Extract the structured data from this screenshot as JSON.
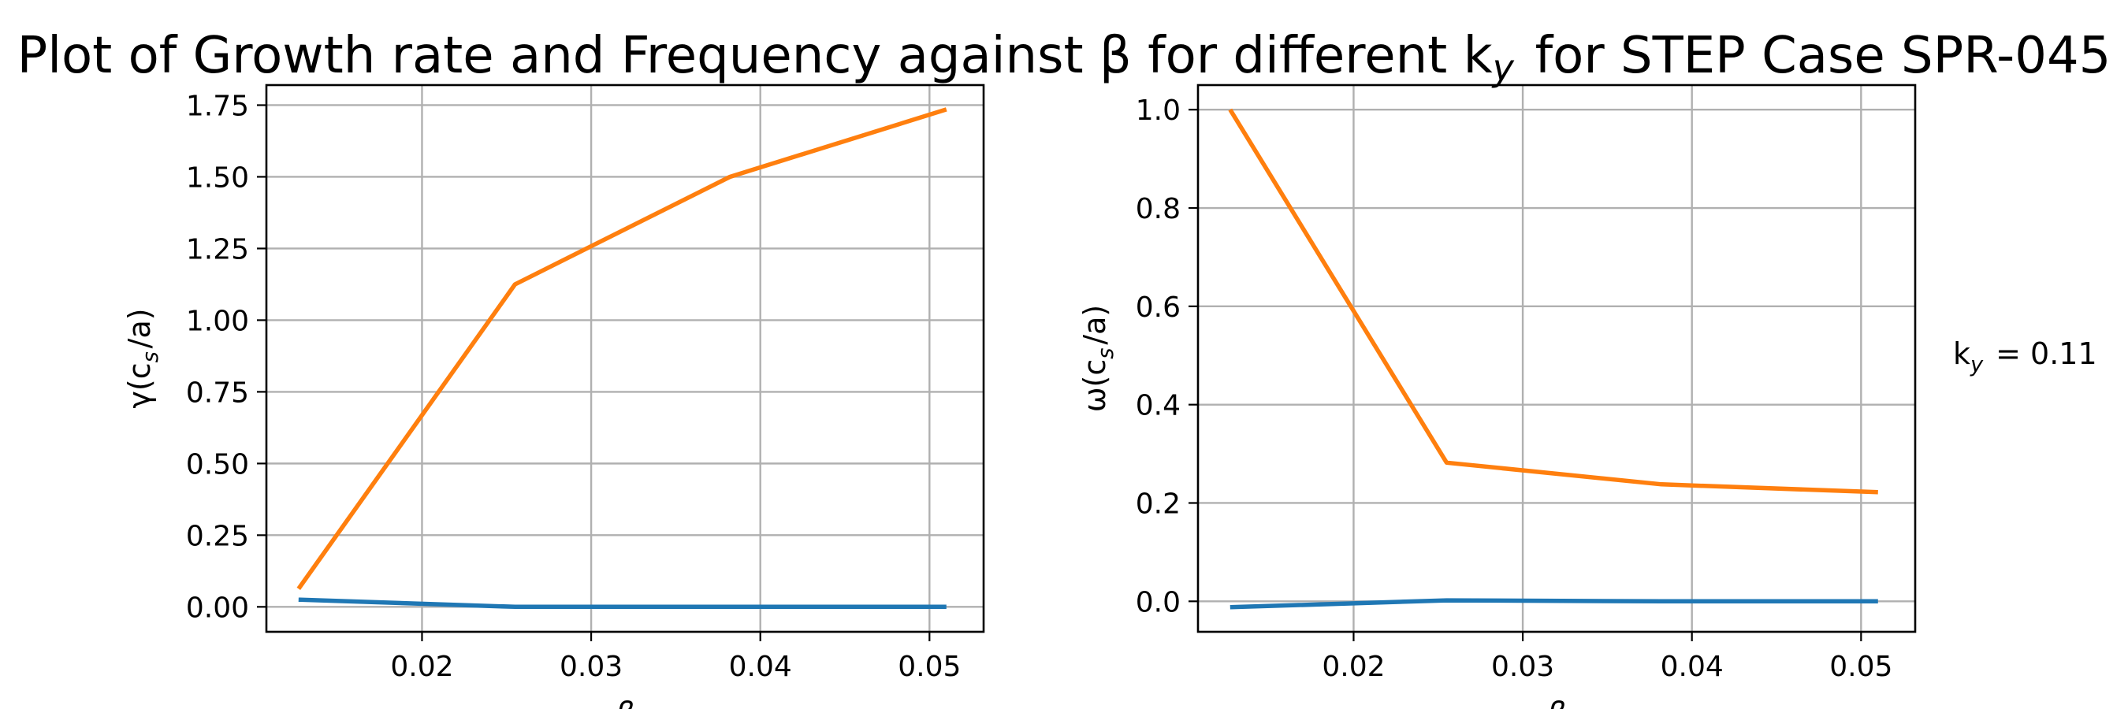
{
  "title": "Plot of Growth rate and Frequency against β for different k_y for STEP Case SPR-045",
  "annotation": "k_y = 0.11",
  "chart_data": [
    {
      "type": "line",
      "ylabel": "γ(c_s/a)",
      "xlabel": "β",
      "xticks": [
        0.02,
        0.03,
        0.04,
        0.05
      ],
      "xtick_labels": [
        "0.02",
        "0.03",
        "0.04",
        "0.05"
      ],
      "yticks": [
        0.0,
        0.25,
        0.5,
        0.75,
        1.0,
        1.25,
        1.5,
        1.75
      ],
      "ytick_labels": [
        "0.00",
        "0.25",
        "0.50",
        "0.75",
        "1.00",
        "1.25",
        "1.50",
        "1.75"
      ],
      "xlim": [
        0.0108,
        0.0532
      ],
      "ylim": [
        -0.087,
        1.82
      ],
      "grid": true,
      "x": [
        0.0127,
        0.0255,
        0.0382,
        0.051
      ],
      "series": [
        {
          "color": "#1f77b4",
          "values": [
            0.025,
            0.0,
            0.0,
            0.0
          ]
        },
        {
          "color": "#ff7f0e",
          "values": [
            0.063,
            1.125,
            1.5,
            1.735
          ]
        }
      ]
    },
    {
      "type": "line",
      "ylabel": "ω(c_s/a)",
      "xlabel": "β",
      "xticks": [
        0.02,
        0.03,
        0.04,
        0.05
      ],
      "xtick_labels": [
        "0.02",
        "0.03",
        "0.04",
        "0.05"
      ],
      "yticks": [
        0.0,
        0.2,
        0.4,
        0.6,
        0.8,
        1.0
      ],
      "ytick_labels": [
        "0.0",
        "0.2",
        "0.4",
        "0.6",
        "0.8",
        "1.0"
      ],
      "xlim": [
        0.0108,
        0.0532
      ],
      "ylim": [
        -0.062,
        1.05
      ],
      "grid": true,
      "x": [
        0.0127,
        0.0255,
        0.0382,
        0.051
      ],
      "series": [
        {
          "color": "#1f77b4",
          "values": [
            -0.012,
            0.002,
            0.0,
            0.0
          ]
        },
        {
          "color": "#ff7f0e",
          "values": [
            1.0,
            0.282,
            0.238,
            0.222
          ]
        }
      ]
    }
  ]
}
